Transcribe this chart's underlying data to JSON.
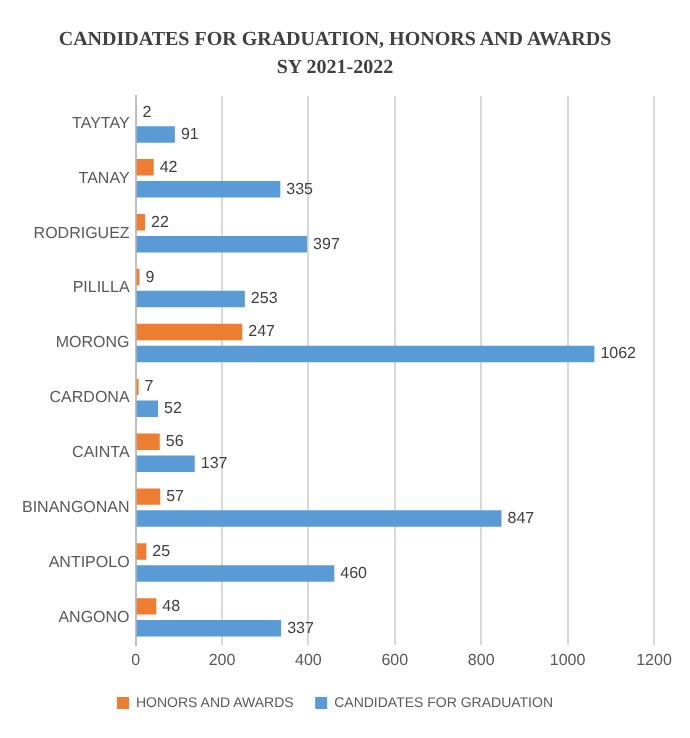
{
  "chart_data": {
    "type": "bar",
    "orientation": "horizontal",
    "title": "CANDIDATES FOR GRADUATION, HONORS AND AWARDS",
    "subtitle": "SY 2021-2022",
    "categories": [
      "TAYTAY",
      "TANAY",
      "RODRIGUEZ",
      "PILILLA",
      "MORONG",
      "CARDONA",
      "CAINTA",
      "BINANGONAN",
      "ANTIPOLO",
      "ANGONO"
    ],
    "series": [
      {
        "name": "HONORS AND AWARDS",
        "color": "#ed7d31",
        "values": [
          2,
          42,
          22,
          9,
          247,
          7,
          56,
          57,
          25,
          48
        ]
      },
      {
        "name": "CANDIDATES FOR GRADUATION",
        "color": "#5b9bd5",
        "values": [
          91,
          335,
          397,
          253,
          1062,
          52,
          137,
          847,
          460,
          337
        ]
      }
    ],
    "xlim": [
      0,
      1200
    ],
    "xticks": [
      0,
      200,
      400,
      600,
      800,
      1000,
      1200
    ],
    "grid": "x",
    "legend": "bottom",
    "data_labels": true
  }
}
